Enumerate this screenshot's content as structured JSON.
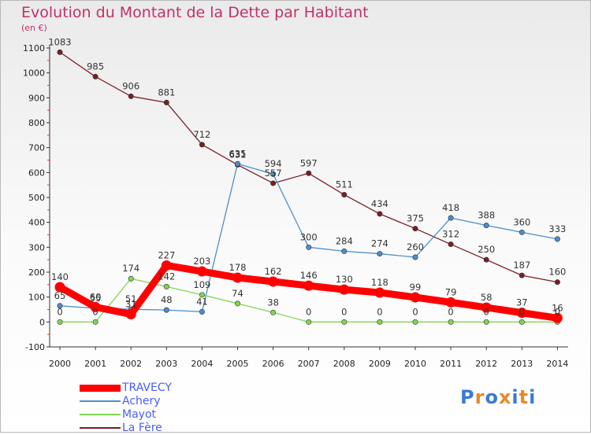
{
  "title": "Evolution du Montant de la Dette par Habitant",
  "unit": "(en €)",
  "logo": {
    "text": "Proxiti",
    "colors": [
      "#3a7bd5",
      "#e8892b",
      "#3a7bd5",
      "#e8892b",
      "#3a7bd5",
      "#e8892b",
      "#3a7bd5"
    ]
  },
  "chart_data": {
    "type": "line",
    "title": "Evolution du Montant de la Dette par Habitant",
    "ylabel": "(en €)",
    "xlabel": "",
    "x": [
      2000,
      2001,
      2002,
      2003,
      2004,
      2005,
      2006,
      2007,
      2008,
      2009,
      2010,
      2011,
      2012,
      2013,
      2014
    ],
    "x_tick_labels": [
      "2000",
      "2001",
      "2002",
      "2003",
      "2004",
      "2005",
      "2006",
      "2007",
      "2008",
      "2009",
      "2010",
      "2011",
      "2012",
      "2013",
      "2014"
    ],
    "ylim": [
      -100,
      1100
    ],
    "y_ticks": [
      -100,
      0,
      100,
      200,
      300,
      400,
      500,
      600,
      700,
      800,
      900,
      1000,
      1100
    ],
    "y_tick_labels": [
      "-100",
      "0",
      "100",
      "200",
      "300",
      "400",
      "500",
      "600",
      "700",
      "800",
      "900",
      "1000",
      "1100"
    ],
    "grid": false,
    "legend_position": "bottom-left",
    "series": [
      {
        "name": "La Fère",
        "color": "#7a1e24",
        "emphasis": false,
        "values": [
          1083,
          985,
          906,
          881,
          712,
          631,
          557,
          597,
          511,
          434,
          375,
          312,
          250,
          187,
          160
        ],
        "labels": [
          "1083",
          "985",
          "906",
          "881",
          "712",
          "631",
          "557",
          "597",
          "511",
          "434",
          "375",
          "312",
          "250",
          "187",
          "160"
        ]
      },
      {
        "name": "Achery",
        "color": "#4a8fcc",
        "emphasis": false,
        "values": [
          65,
          55,
          51,
          48,
          41,
          635,
          594,
          300,
          284,
          274,
          260,
          418,
          388,
          360,
          333
        ],
        "labels": [
          "65",
          "55",
          "51",
          "48",
          "41",
          "635",
          "594",
          "300",
          "284",
          "274",
          "260",
          "418",
          "388",
          "360",
          "333"
        ]
      },
      {
        "name": "Mayot",
        "color": "#7fd651",
        "emphasis": false,
        "values": [
          0,
          0,
          174,
          142,
          109,
          74,
          38,
          0,
          0,
          0,
          0,
          0,
          0,
          0,
          0
        ],
        "labels": [
          "0",
          "0",
          "174",
          "142",
          "109",
          "74",
          "38",
          "0",
          "0",
          "0",
          "0",
          "0",
          "0",
          "0",
          "0"
        ]
      },
      {
        "name": "TRAVECY",
        "color": "#ff0000",
        "emphasis": true,
        "values": [
          140,
          60,
          31,
          227,
          203,
          178,
          162,
          146,
          130,
          118,
          99,
          79,
          58,
          37,
          16
        ],
        "labels": [
          "140",
          "60",
          "31",
          "227",
          "203",
          "178",
          "162",
          "146",
          "130",
          "118",
          "99",
          "79",
          "58",
          "37",
          "16"
        ]
      }
    ],
    "legend_order": [
      "TRAVECY",
      "Achery",
      "Mayot",
      "La Fère"
    ]
  }
}
